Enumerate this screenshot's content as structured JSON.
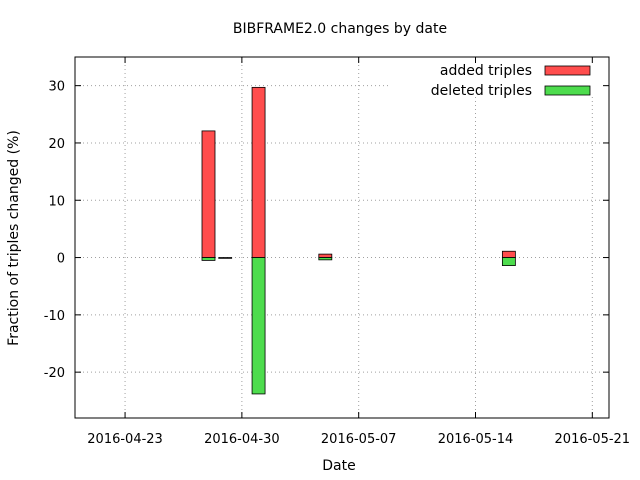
{
  "chart_data": {
    "type": "bar",
    "title": "BIBFRAME2.0 changes by date",
    "xlabel": "Date",
    "ylabel": "Fraction of triples changed (%)",
    "xlim": [
      "2016-04-20",
      "2016-05-22"
    ],
    "ylim": [
      -28,
      35
    ],
    "x_ticks": [
      "2016-04-23",
      "2016-04-30",
      "2016-05-07",
      "2016-05-14",
      "2016-05-21"
    ],
    "x_tick_labels": [
      "2016-04-23",
      "2016-04-30",
      "2016-05-07",
      "2016-05-14",
      "2016-05-21"
    ],
    "y_ticks": [
      -20,
      -10,
      0,
      10,
      20,
      30
    ],
    "y_tick_labels": [
      "-20",
      "-10",
      "0",
      "10",
      "20",
      "30"
    ],
    "grid": true,
    "legend_position": "top-right",
    "series": [
      {
        "name": "added triples",
        "color": "#ff4d4d",
        "bars": [
          {
            "date": "2016-04-28",
            "value": 22.1
          },
          {
            "date": "2016-05-01",
            "value": 29.7
          },
          {
            "date": "2016-05-05",
            "value": 0.6
          },
          {
            "date": "2016-05-16",
            "value": 1.1
          }
        ]
      },
      {
        "name": "deleted triples",
        "color": "#4ddc4d",
        "bars": [
          {
            "date": "2016-04-28",
            "value": -0.5
          },
          {
            "date": "2016-04-29",
            "value": -0.1
          },
          {
            "date": "2016-05-01",
            "value": -23.8
          },
          {
            "date": "2016-05-05",
            "value": -0.4
          },
          {
            "date": "2016-05-16",
            "value": -1.4
          }
        ]
      }
    ]
  }
}
